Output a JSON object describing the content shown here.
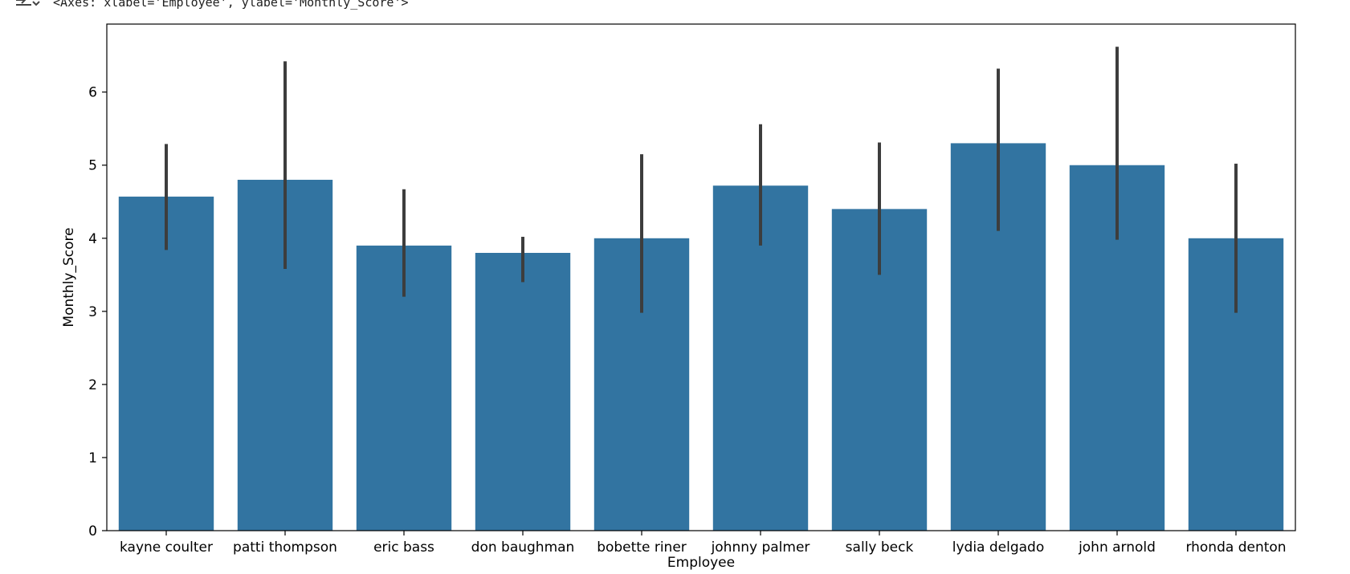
{
  "output": {
    "text": "<Axes: xlabel='Employee', ylabel='Monthly_Score'>"
  },
  "chart_data": {
    "type": "bar",
    "xlabel": "Employee",
    "ylabel": "Monthly_Score",
    "categories": [
      "kayne coulter",
      "patti thompson",
      "eric bass",
      "don baughman",
      "bobette riner",
      "johnny palmer",
      "sally beck",
      "lydia delgado",
      "john arnold",
      "rhonda denton"
    ],
    "values": [
      4.57,
      4.8,
      3.9,
      3.8,
      4.0,
      4.72,
      4.4,
      5.3,
      5.0,
      4.0
    ],
    "error_bars": [
      [
        3.84,
        5.29
      ],
      [
        3.58,
        6.42
      ],
      [
        3.2,
        4.67
      ],
      [
        3.4,
        4.02
      ],
      [
        2.98,
        5.15
      ],
      [
        3.9,
        5.56
      ],
      [
        3.5,
        5.31
      ],
      [
        4.1,
        6.32
      ],
      [
        3.98,
        6.62
      ],
      [
        2.98,
        5.02
      ]
    ],
    "ylim": [
      0,
      6.93
    ],
    "yticks": [
      0,
      1,
      2,
      3,
      4,
      5,
      6
    ],
    "bar_color": "#3274a1",
    "errorbar_color": "#3d3d3d",
    "grid": false,
    "legend": "none"
  }
}
